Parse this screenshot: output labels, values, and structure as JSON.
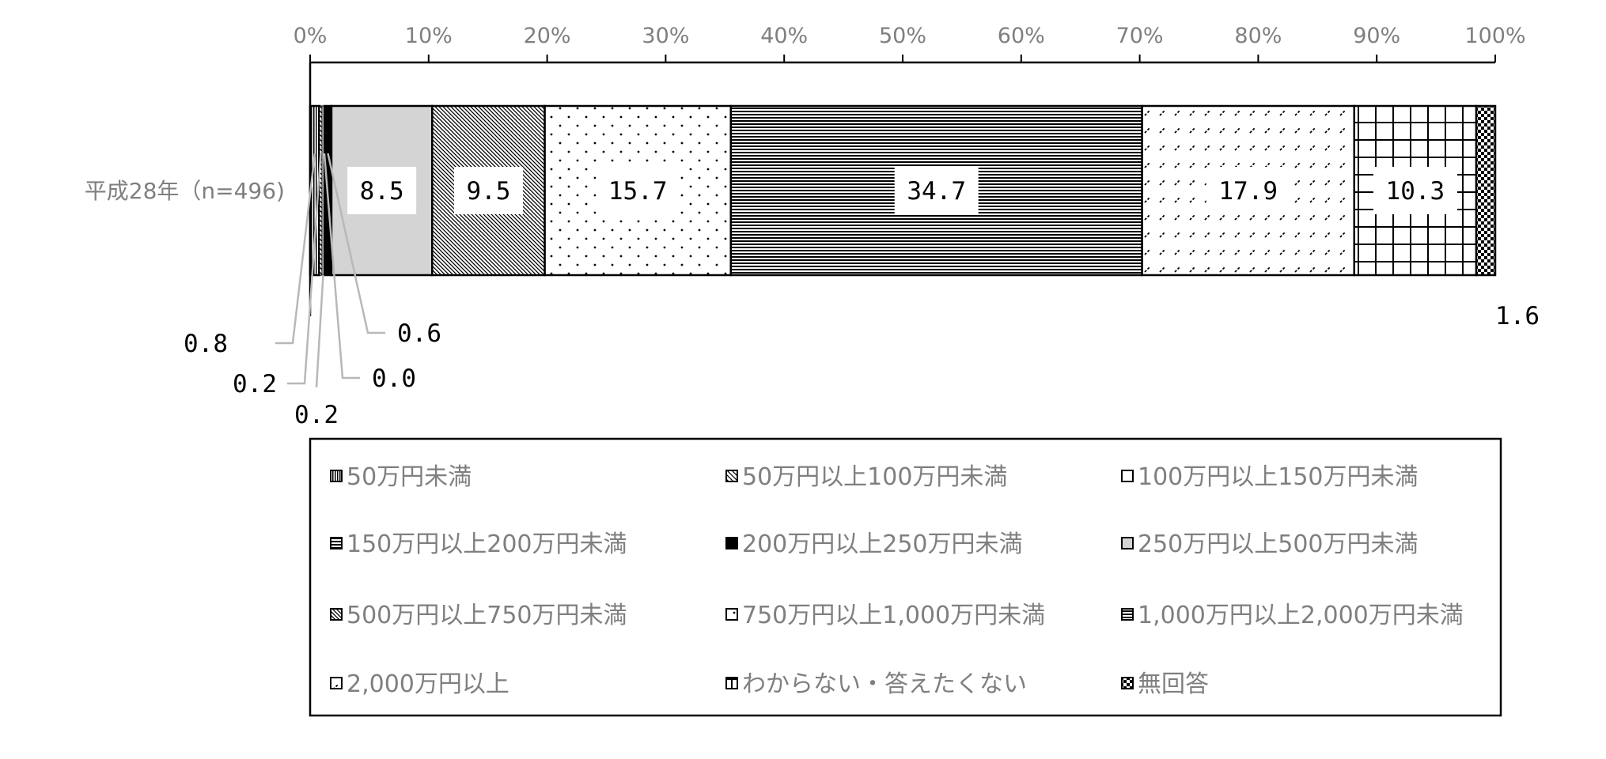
{
  "chart_data": {
    "type": "bar",
    "orientation": "horizontal",
    "stacked": true,
    "percent": true,
    "categories": [
      "平成28年（n=496)"
    ],
    "xlim": [
      0,
      100
    ],
    "x_ticks": [
      "0%",
      "10%",
      "20%",
      "30%",
      "40%",
      "50%",
      "60%",
      "70%",
      "80%",
      "90%",
      "100%"
    ],
    "legend_position": "bottom",
    "series": [
      {
        "name": "50万円未満",
        "values": [
          0.8
        ],
        "label": "0.8",
        "pattern": "vlines-dense"
      },
      {
        "name": "50万円以上100万円未満",
        "values": [
          0.2
        ],
        "label": "0.2",
        "pattern": "diag-hatch"
      },
      {
        "name": "100万円以上150万円未満",
        "values": [
          0.2
        ],
        "label": "0.2",
        "pattern": "plain"
      },
      {
        "name": "150万円以上200万円未満",
        "values": [
          0.0
        ],
        "label": "0.0",
        "pattern": "hlines"
      },
      {
        "name": "200万円以上250万円未満",
        "values": [
          0.6
        ],
        "label": "0.6",
        "pattern": "solid-black"
      },
      {
        "name": "250万円以上500万円未満",
        "values": [
          8.5
        ],
        "label": "8.5",
        "pattern": "gray"
      },
      {
        "name": "500万円以上750万円未満",
        "values": [
          9.5
        ],
        "label": "9.5",
        "pattern": "diag-dense"
      },
      {
        "name": "750万円以上1,000万円未満",
        "values": [
          15.7
        ],
        "label": "15.7",
        "pattern": "dots"
      },
      {
        "name": "1,000万円以上2,000万円未満",
        "values": [
          34.7
        ],
        "label": "34.7",
        "pattern": "hlines-dense"
      },
      {
        "name": "2,000万円以上",
        "values": [
          17.9
        ],
        "label": "17.9",
        "pattern": "slashes"
      },
      {
        "name": "わからない・答えたくない",
        "values": [
          10.3
        ],
        "label": "10.3",
        "pattern": "grid"
      },
      {
        "name": "無回答",
        "values": [
          1.6
        ],
        "label": "1.6",
        "pattern": "checker"
      }
    ]
  }
}
